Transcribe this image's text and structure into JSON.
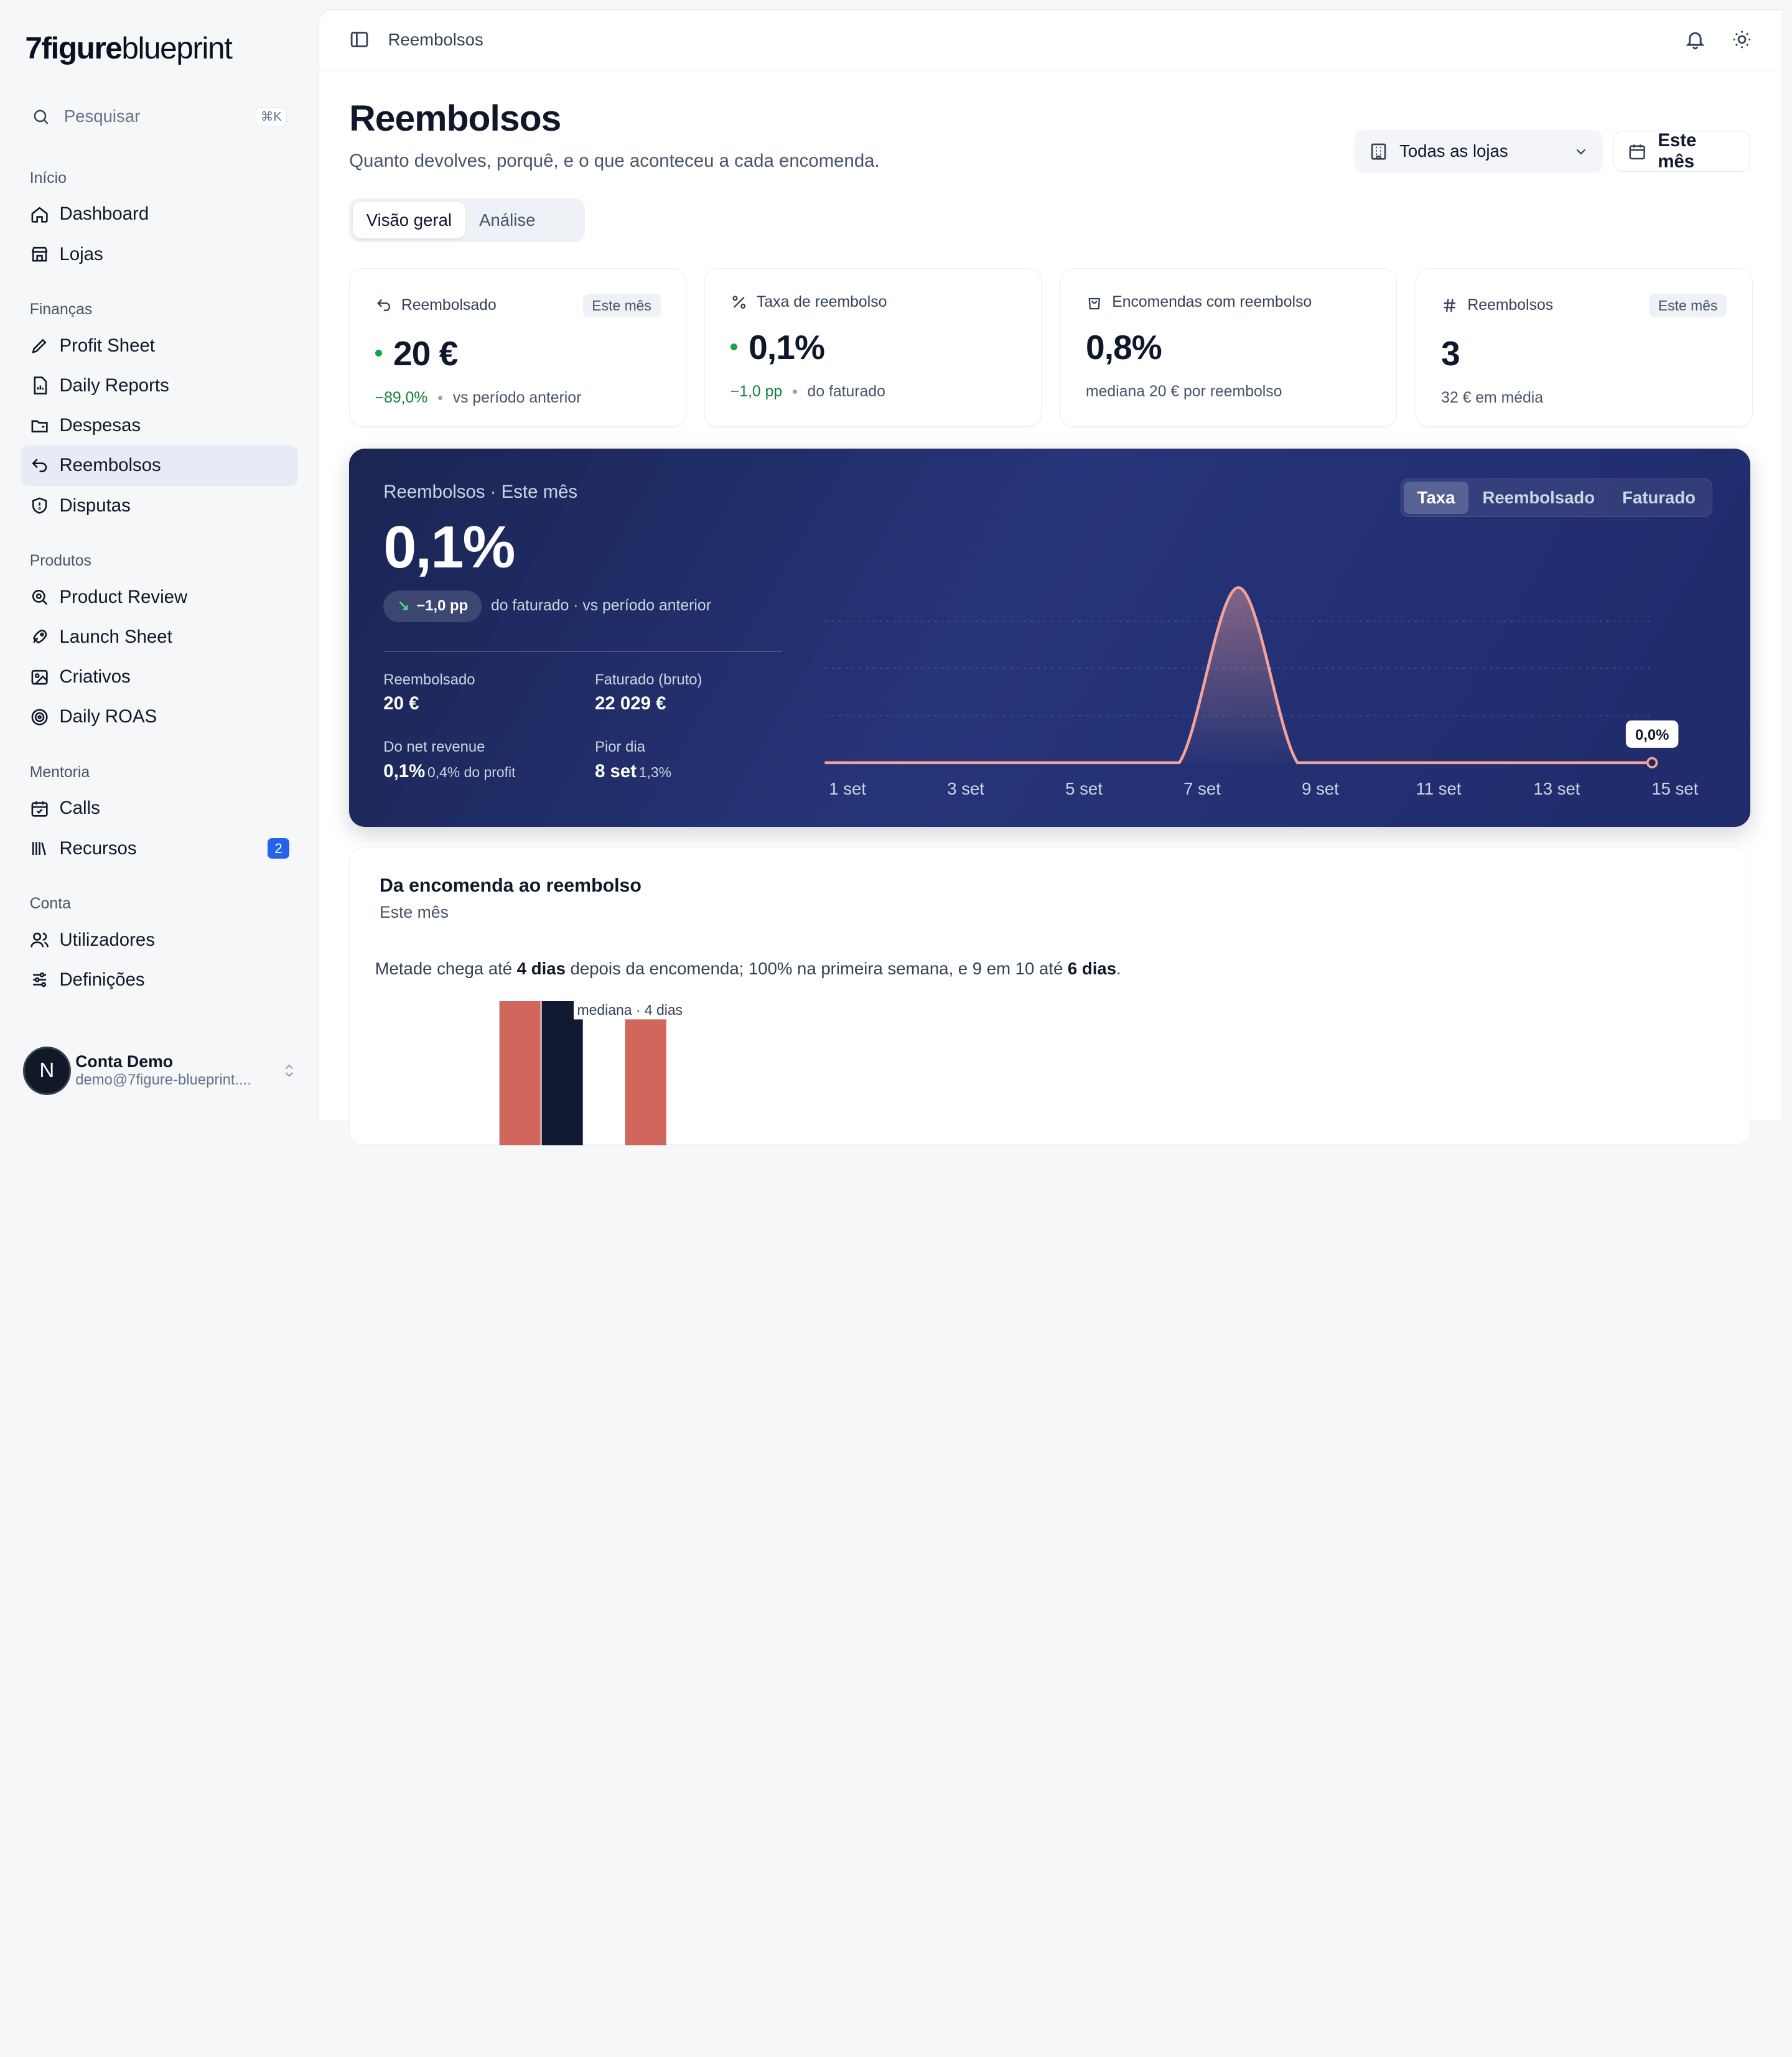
{
  "brand": {
    "logo_bold": "7figure",
    "logo_light": "blueprint"
  },
  "search": {
    "label": "Pesquisar",
    "shortcut": "⌘K"
  },
  "nav": {
    "inicio": {
      "title": "Início",
      "items": [
        "Dashboard",
        "Lojas"
      ]
    },
    "financas": {
      "title": "Finanças",
      "items": [
        "Profit Sheet",
        "Daily Reports",
        "Despesas",
        "Reembolsos",
        "Disputas"
      ]
    },
    "produtos": {
      "title": "Produtos",
      "items": [
        "Product Review",
        "Launch Sheet",
        "Criativos",
        "Daily ROAS"
      ]
    },
    "mentoria": {
      "title": "Mentoria",
      "items": [
        "Calls",
        "Recursos"
      ],
      "recursos_badge": "2"
    },
    "conta": {
      "title": "Conta",
      "items": [
        "Utilizadores",
        "Definições"
      ]
    }
  },
  "account": {
    "initial": "N",
    "name": "Conta Demo",
    "email": "demo@7figure-blueprint...."
  },
  "topbar": {
    "breadcrumb": "Reembolsos"
  },
  "page": {
    "title": "Reembolsos",
    "subtitle": "Quanto devolves, porquê, e o que aconteceu a cada encomenda.",
    "store_filter": "Todas as lojas",
    "period_button": "Este mês",
    "tabs": [
      "Visão geral",
      "Análise"
    ]
  },
  "kpis": [
    {
      "label": "Reembolsado",
      "badge": "Este mês",
      "value": "20 €",
      "delta": "−89,0%",
      "foot": "vs período anterior"
    },
    {
      "label": "Taxa de reembolso",
      "value": "0,1%",
      "delta": "−1,0 pp",
      "foot": "do faturado"
    },
    {
      "label": "Encomendas com reembolso",
      "value": "0,8%",
      "foot": "mediana 20 € por reembolso"
    },
    {
      "label": "Reembolsos",
      "badge": "Este mês",
      "value": "3",
      "foot": "32 € em média"
    }
  ],
  "hero": {
    "title": "Reembolsos · Este mês",
    "value": "0,1%",
    "pill": "−1,0 pp",
    "note": "do faturado · vs período anterior",
    "stats": [
      {
        "label": "Reembolsado",
        "value": "20 €",
        "extra": ""
      },
      {
        "label": "Faturado (bruto)",
        "value": "22 029 €",
        "extra": ""
      },
      {
        "label": "Do net revenue",
        "value": "0,1%",
        "extra": "0,4% do profit"
      },
      {
        "label": "Pior dia",
        "value": "8 set",
        "extra": "1,3%"
      }
    ],
    "segments": [
      "Taxa",
      "Reembolsado",
      "Faturado"
    ],
    "tooltip": "0,0%"
  },
  "chart_data": {
    "type": "area",
    "x": [
      "1 set",
      "2 set",
      "3 set",
      "4 set",
      "5 set",
      "6 set",
      "7 set",
      "8 set",
      "9 set",
      "10 set",
      "11 set",
      "12 set",
      "13 set",
      "14 set",
      "15 set"
    ],
    "tick_labels": [
      "1 set",
      "3 set",
      "5 set",
      "7 set",
      "9 set",
      "11 set",
      "13 set",
      "15 set"
    ],
    "values": [
      0,
      0,
      0,
      0,
      0,
      0,
      0,
      1.3,
      0,
      0,
      0,
      0,
      0,
      0,
      0
    ],
    "ylim": [
      0,
      1.4
    ],
    "grid": true,
    "color": "#f4a39a"
  },
  "section": {
    "title": "Da encomenda ao reembolso",
    "subtitle": "Este mês",
    "text_a": "Metade chega até ",
    "text_b": "4 dias",
    "text_c": " depois da encomenda; 100% na primeira semana, e 9 em 10 até ",
    "text_d": "6 dias",
    "text_e": ".",
    "median_label": "mediana · 4 dias"
  }
}
